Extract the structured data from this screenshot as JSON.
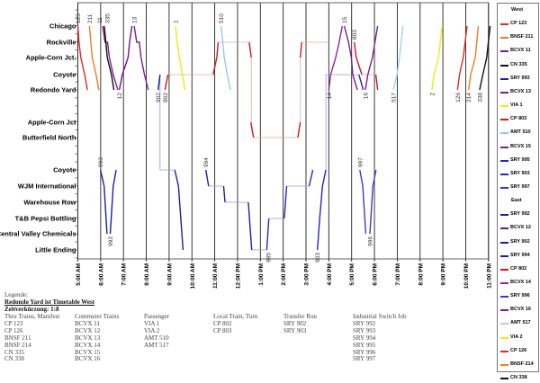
{
  "chart_data": {
    "type": "line",
    "x_unit": "hour of day",
    "xlim": [
      5,
      23
    ],
    "x_ticks": [
      "5:00 AM",
      "6:00 AM",
      "7:00 AM",
      "8:00 AM",
      "9:00 AM",
      "10:00 AM",
      "11:00 AM",
      "12:00 PM",
      "1:00 PM",
      "2:00 PM",
      "3:00 PM",
      "4:00 PM",
      "5:00 PM",
      "6:00 PM",
      "7:00 PM",
      "8:00 PM",
      "9:00 PM",
      "10:00 PM",
      "11:00 PM"
    ],
    "stations": [
      "Chicago",
      "Rockville",
      "Apple-Corn Jct.",
      "Coyote",
      "Redondo Yard",
      "Apple-Corn Jct",
      "Butterfield North",
      "Coyote",
      "WJM International",
      "Warehouse Row",
      "T&B Pepsi Bottling",
      "Central Valley Chemicals",
      "Little Ending"
    ],
    "grid": true,
    "legend_position": "right",
    "legend_groups": [
      "West",
      "East"
    ],
    "trains": [
      {
        "name": "CP 123",
        "label": "123",
        "group": "West",
        "color": "#dd2a2a",
        "label_end": "first",
        "paths": [
          [
            [
              5.0,
              0
            ],
            [
              5.05,
              1
            ],
            [
              5.13,
              2
            ],
            [
              5.3,
              3
            ],
            [
              5.42,
              4
            ]
          ]
        ],
        "links": []
      },
      {
        "name": "BNSF 211",
        "label": "211",
        "group": "West",
        "color": "#ee7a2a",
        "label_end": "first",
        "paths": [
          [
            [
              5.51,
              0
            ],
            [
              5.57,
              1
            ],
            [
              5.63,
              2
            ],
            [
              5.8,
              3
            ],
            [
              5.92,
              4
            ]
          ]
        ],
        "links": []
      },
      {
        "name": "BCVX 11",
        "label": "11",
        "group": "West",
        "color": "#7a1f8a",
        "label_end": "first",
        "paths": [
          [
            [
              6.09,
              0
            ],
            [
              6.19,
              1
            ],
            [
              6.3,
              1
            ],
            [
              6.38,
              2
            ],
            [
              6.55,
              3
            ],
            [
              6.75,
              4
            ]
          ]
        ],
        "links": []
      },
      {
        "name": "CN 335",
        "label": "335",
        "group": "West",
        "color": "#111111",
        "label_end": "first",
        "paths": [
          [
            [
              6.16,
              0
            ],
            [
              6.29,
              2
            ],
            [
              6.47,
              3
            ],
            [
              6.58,
              4
            ]
          ]
        ],
        "links": []
      },
      {
        "name": "SRY 993",
        "label": "993",
        "group": "West",
        "color": "#1c1cae",
        "label_end": "first",
        "paths": [
          [
            [
              5.99,
              7
            ],
            [
              6.15,
              8
            ],
            [
              6.28,
              11
            ]
          ]
        ],
        "links": []
      },
      {
        "name": "BCVX 13",
        "label": "13",
        "group": "West",
        "color": "#7a1f8a",
        "label_end": "first",
        "paths": [
          [
            [
              7.47,
              0
            ],
            [
              7.58,
              1
            ],
            [
              7.7,
              1
            ],
            [
              7.77,
              2
            ],
            [
              7.92,
              3
            ],
            [
              8.09,
              4
            ]
          ]
        ],
        "links": []
      },
      {
        "name": "VIA 1",
        "label": "1",
        "group": "West",
        "color": "#f2ea10",
        "label_end": "first",
        "paths": [
          [
            [
              9.28,
              0
            ],
            [
              9.35,
              1
            ],
            [
              9.45,
              2
            ],
            [
              9.58,
              3
            ],
            [
              9.7,
              4
            ]
          ]
        ],
        "links": []
      },
      {
        "name": "CP 803",
        "label": "803",
        "group": "West",
        "color": "#cc1a1a",
        "label_end": "first",
        "paths": [
          [
            [
              17.12,
              1
            ],
            [
              17.2,
              2
            ],
            [
              17.45,
              3
            ]
          ],
          [
            [
              18.06,
              3
            ],
            [
              18.14,
              4
            ]
          ]
        ],
        "links": [
          [
            [
              17.45,
              3
            ],
            [
              18.06,
              3
            ]
          ]
        ]
      },
      {
        "name": "AMT 510",
        "label": "510",
        "group": "West",
        "color": "#9cc8e8",
        "label_end": "first",
        "paths": [
          [
            [
              11.28,
              0
            ],
            [
              11.35,
              1
            ],
            [
              11.42,
              2
            ],
            [
              11.55,
              3
            ],
            [
              11.69,
              4
            ]
          ]
        ],
        "links": []
      },
      {
        "name": "BCVX 15",
        "label": "15",
        "group": "West",
        "color": "#7a1f8a",
        "label_end": "first",
        "paths": [
          [
            [
              16.68,
              0
            ],
            [
              16.86,
              1
            ],
            [
              16.99,
              2
            ],
            [
              17.05,
              3
            ],
            [
              17.25,
              4
            ]
          ]
        ],
        "links": []
      },
      {
        "name": "SRY 995",
        "label": "995",
        "group": "West",
        "color": "#2626c0",
        "label_end": "first",
        "paths": [
          [
            [
              13.28,
              12
            ],
            [
              13.37,
              10
            ]
          ],
          [
            [
              14.05,
              10
            ],
            [
              14.15,
              8
            ]
          ],
          [
            [
              15.14,
              8
            ],
            [
              15.3,
              7
            ]
          ]
        ],
        "links": [
          [
            [
              12.62,
              12
            ],
            [
              13.28,
              12
            ]
          ],
          [
            [
              13.37,
              10
            ],
            [
              14.05,
              10
            ]
          ],
          [
            [
              14.15,
              8
            ],
            [
              15.14,
              8
            ]
          ]
        ]
      },
      {
        "name": "SRY 903",
        "label": "903",
        "group": "West",
        "color": "#2626c0",
        "label_end": "first",
        "paths": [
          [
            [
              15.5,
              12
            ],
            [
              15.6,
              10
            ],
            [
              15.72,
              8
            ],
            [
              15.87,
              7
            ]
          ],
          [
            [
              17.32,
              3
            ],
            [
              17.51,
              4
            ]
          ]
        ],
        "links": [
          [
            [
              15.87,
              7
            ],
            [
              15.87,
              3
            ],
            [
              17.32,
              3
            ]
          ]
        ]
      },
      {
        "name": "SRY 997",
        "label": "997",
        "group": "West",
        "color": "#3a3ad0",
        "label_end": "first",
        "paths": [
          [
            [
              17.36,
              7
            ],
            [
              17.49,
              8
            ],
            [
              17.62,
              11
            ]
          ]
        ],
        "links": []
      },
      {
        "name": "SRY 992",
        "label": "992",
        "group": "East",
        "color": "#1c1cae",
        "label_end": "first",
        "paths": [
          [
            [
              6.42,
              11
            ],
            [
              6.55,
              8
            ],
            [
              6.68,
              7
            ]
          ]
        ],
        "links": []
      },
      {
        "name": "BCVX 12",
        "label": "12",
        "group": "East",
        "color": "#6a1a7a",
        "label_end": "first",
        "paths": [
          [
            [
              6.82,
              4
            ],
            [
              6.95,
              3
            ],
            [
              7.2,
              2
            ],
            [
              7.27,
              1
            ],
            [
              7.37,
              0
            ]
          ]
        ],
        "links": []
      },
      {
        "name": "SRY 902",
        "label": "902",
        "group": "East",
        "color": "#1c1cae",
        "label_end": "first",
        "paths": [
          [
            [
              8.52,
              4
            ],
            [
              8.6,
              3
            ]
          ],
          [
            [
              9.25,
              7
            ],
            [
              9.41,
              8
            ],
            [
              9.61,
              12
            ]
          ]
        ],
        "links": [
          [
            [
              8.6,
              3
            ],
            [
              8.6,
              7
            ],
            [
              9.25,
              7
            ]
          ]
        ]
      },
      {
        "name": "SRY 994",
        "label": "994",
        "group": "East",
        "color": "#1c1cae",
        "label_end": "first",
        "paths": [
          [
            [
              10.61,
              7
            ],
            [
              10.73,
              8
            ]
          ],
          [
            [
              11.39,
              8
            ],
            [
              11.45,
              9
            ]
          ],
          [
            [
              12.47,
              9
            ],
            [
              12.62,
              12
            ]
          ]
        ],
        "links": [
          [
            [
              10.73,
              8
            ],
            [
              11.39,
              8
            ]
          ],
          [
            [
              11.45,
              9
            ],
            [
              12.47,
              9
            ]
          ]
        ]
      },
      {
        "name": "CP 802",
        "label": "802",
        "group": "East",
        "color": "#cc1a1a",
        "label_end": "first",
        "paths": [
          [
            [
              8.82,
              4
            ],
            [
              8.95,
              3
            ]
          ],
          [
            [
              10.93,
              3
            ],
            [
              11.09,
              2
            ],
            [
              11.15,
              1
            ]
          ],
          [
            [
              12.51,
              1
            ],
            [
              12.6,
              2
            ]
          ],
          [
            [
              12.58,
              5
            ],
            [
              12.7,
              6
            ]
          ],
          [
            [
              14.64,
              6
            ],
            [
              14.75,
              5
            ]
          ],
          [
            [
              14.75,
              2
            ],
            [
              14.81,
              1
            ]
          ]
        ],
        "links": [
          [
            [
              8.95,
              3
            ],
            [
              10.93,
              3
            ]
          ],
          [
            [
              11.15,
              1
            ],
            [
              12.51,
              1
            ]
          ],
          [
            [
              12.6,
              2
            ],
            [
              12.6,
              5
            ]
          ],
          [
            [
              12.7,
              6
            ],
            [
              14.64,
              6
            ]
          ],
          [
            [
              14.75,
              5
            ],
            [
              14.75,
              2
            ]
          ],
          [
            [
              14.81,
              1
            ],
            [
              16.0,
              1
            ]
          ]
        ]
      },
      {
        "name": "BCVX 14",
        "label": "14",
        "group": "East",
        "color": "#8a2a9a",
        "label_end": "first",
        "paths": [
          [
            [
              16.0,
              4
            ],
            [
              16.08,
              3
            ],
            [
              16.3,
              2
            ],
            [
              16.45,
              1
            ],
            [
              16.59,
              0
            ]
          ]
        ],
        "links": []
      },
      {
        "name": "SRY 996",
        "label": "996",
        "group": "East",
        "color": "#3a3ad0",
        "label_end": "first",
        "paths": [
          [
            [
              17.8,
              11
            ],
            [
              17.93,
              8
            ],
            [
              18.07,
              7
            ]
          ]
        ],
        "links": []
      },
      {
        "name": "BCVX 16",
        "label": "16",
        "group": "East",
        "color": "#7a1f8a",
        "label_end": "first",
        "paths": [
          [
            [
              17.6,
              4
            ],
            [
              17.71,
              3
            ],
            [
              17.91,
              2
            ],
            [
              18.02,
              1
            ],
            [
              18.14,
              0
            ]
          ]
        ],
        "links": []
      },
      {
        "name": "AMT 517",
        "label": "517",
        "group": "East",
        "color": "#a8d0ec",
        "label_end": "first",
        "paths": [
          [
            [
              18.83,
              4
            ],
            [
              18.99,
              3
            ],
            [
              19.1,
              2
            ],
            [
              19.25,
              0
            ]
          ]
        ],
        "links": []
      },
      {
        "name": "VIA 2",
        "label": "2",
        "group": "East",
        "color": "#f2ea10",
        "label_end": "first",
        "paths": [
          [
            [
              20.52,
              4
            ],
            [
              20.61,
              3
            ],
            [
              20.81,
              2
            ],
            [
              20.97,
              0
            ]
          ]
        ],
        "links": []
      },
      {
        "name": "CP 126",
        "label": "126",
        "group": "East",
        "color": "#dd2a2a",
        "label_end": "first",
        "paths": [
          [
            [
              21.64,
              4
            ],
            [
              21.73,
              3
            ],
            [
              21.89,
              2
            ],
            [
              22.06,
              0
            ]
          ]
        ],
        "links": []
      },
      {
        "name": "BNSF 214",
        "label": "214",
        "group": "East",
        "color": "#ee7a2a",
        "label_end": "first",
        "paths": [
          [
            [
              22.13,
              4
            ],
            [
              22.22,
              3
            ],
            [
              22.42,
              2
            ],
            [
              22.55,
              0
            ]
          ]
        ],
        "links": []
      },
      {
        "name": "CN 338",
        "label": "338",
        "group": "East",
        "color": "#111111",
        "label_end": "first",
        "paths": [
          [
            [
              22.61,
              4
            ],
            [
              22.75,
              3
            ],
            [
              22.92,
              2
            ],
            [
              23.07,
              0
            ]
          ]
        ],
        "links": []
      }
    ]
  },
  "bottom_legend": {
    "title": "Legende:",
    "subtitle": "Redondo Yard ist Timetable West",
    "scale": "Zeitverkürzung: 1:8",
    "columns": [
      {
        "header": "Thru Trains, Manifest",
        "items": [
          "CP 123",
          "CP 126",
          "BNSF 211",
          "BNSF 214",
          "CN 335",
          "CN 338"
        ]
      },
      {
        "header": "Commuter Trains",
        "items": [
          "BCVX 11",
          "BCVX 12",
          "BCVX 13",
          "BCVX 14",
          "BCVX 15",
          "BCVX 16"
        ]
      },
      {
        "header": "Passenger",
        "items": [
          "VIA 1",
          "VIA 2",
          "AMT 510",
          "AMT 517"
        ]
      },
      {
        "header": "Local Train, Turn",
        "items": [
          "CP 802",
          "CP 803"
        ]
      },
      {
        "header": "Transfer Run",
        "items": [
          "SRY 902",
          "SRY 903"
        ]
      },
      {
        "header": "Industrial Switch Job",
        "items": [
          "SRY 992",
          "SRY 993",
          "SRY 994",
          "SRY 995",
          "SRY 996",
          "SRY 997"
        ]
      }
    ]
  }
}
